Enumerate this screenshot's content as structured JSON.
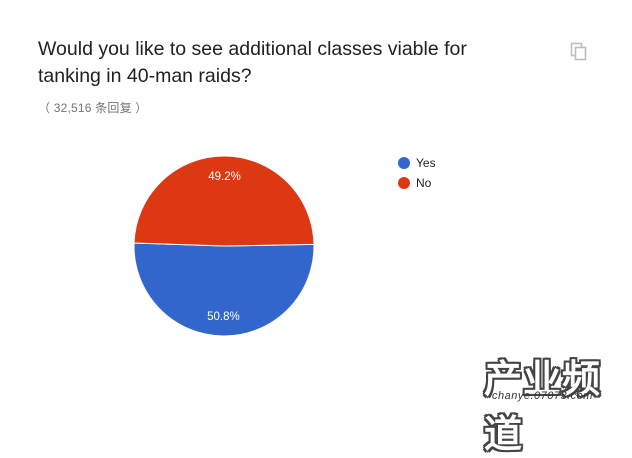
{
  "question": {
    "title": "Would you like to see additional classes viable for tanking in 40-man raids?",
    "responses": "（ 32,516 条回复 ）"
  },
  "toolbar": {
    "copy_icon": "copy-icon"
  },
  "chart_data": {
    "type": "pie",
    "title": "",
    "slices": [
      {
        "label": "Yes",
        "value": 50.8,
        "display": "50.8%",
        "color": "#3366cc"
      },
      {
        "label": "No",
        "value": 49.2,
        "display": "49.2%",
        "color": "#dc3912"
      }
    ],
    "legend_position": "right"
  },
  "legend": {
    "items": [
      {
        "label": "Yes",
        "color": "#3366cc"
      },
      {
        "label": "No",
        "color": "#dc3912"
      }
    ]
  },
  "watermark": {
    "text": "产业频道",
    "url": "chanye.07073.com"
  }
}
